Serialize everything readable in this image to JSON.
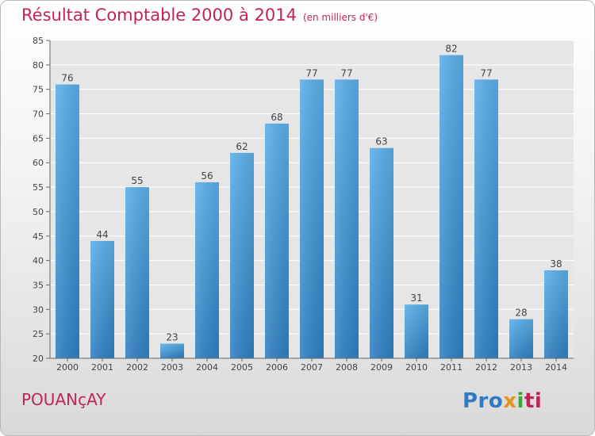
{
  "title": "Résultat Comptable 2000 à 2014",
  "unit": "(en milliers d'€)",
  "place": "POUANçAY",
  "logo": {
    "p1": "Pro",
    "p2": "x",
    "p3": "i",
    "p4": "ti"
  },
  "colors": {
    "bar": "#3f9ee0",
    "title": "#c0245a"
  },
  "chart_data": {
    "type": "bar",
    "title": "Résultat Comptable 2000 à 2014",
    "categories": [
      "2000",
      "2001",
      "2002",
      "2003",
      "2004",
      "2005",
      "2006",
      "2007",
      "2008",
      "2009",
      "2010",
      "2011",
      "2012",
      "2013",
      "2014"
    ],
    "values": [
      76,
      44,
      55,
      23,
      56,
      62,
      68,
      77,
      77,
      63,
      31,
      82,
      77,
      28,
      38
    ],
    "ylim": [
      20,
      85
    ],
    "yticks": [
      20,
      25,
      30,
      35,
      40,
      45,
      50,
      55,
      60,
      65,
      70,
      75,
      80,
      85
    ],
    "grid": true
  }
}
